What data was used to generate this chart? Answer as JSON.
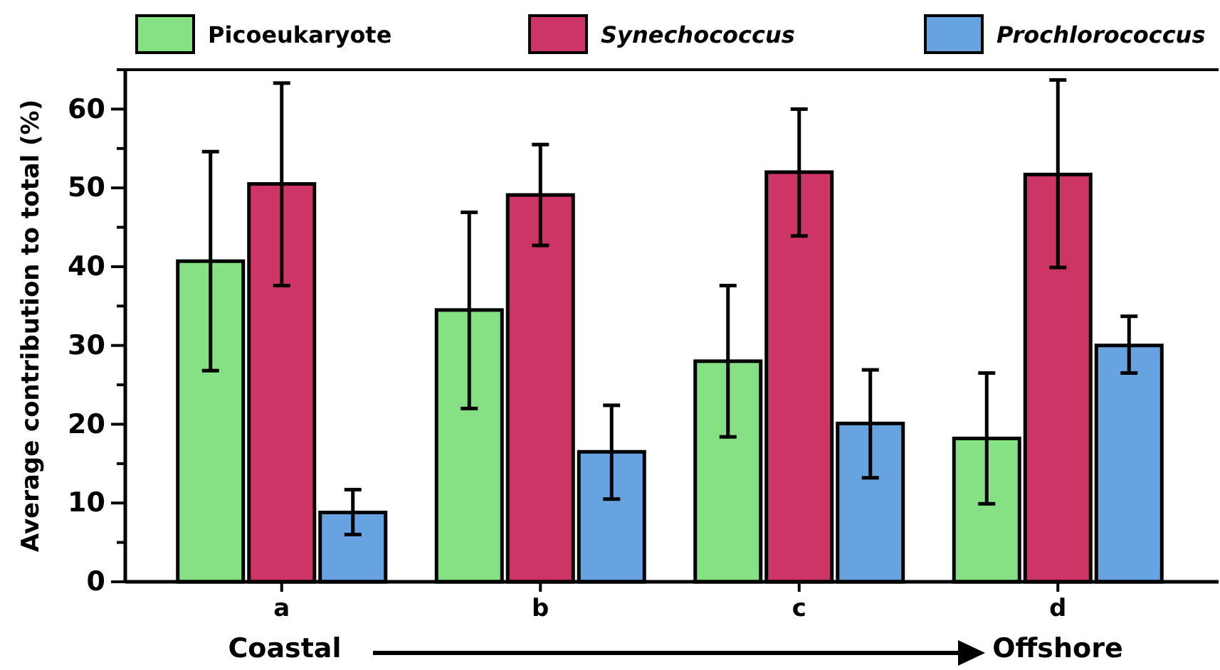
{
  "chart_data": {
    "type": "bar",
    "ylabel": "Average contribution to total (%)",
    "categories": [
      "a",
      "b",
      "c",
      "d"
    ],
    "series": [
      {
        "name": "Picoeukaryote",
        "color": "#86e084",
        "values": [
          40.7,
          34.5,
          28.0,
          18.2
        ],
        "errors": [
          [
            26.8,
            54.6
          ],
          [
            22.0,
            46.9
          ],
          [
            18.4,
            37.6
          ],
          [
            9.9,
            26.5
          ]
        ]
      },
      {
        "name": "Synechococcus",
        "color": "#cc3565",
        "values": [
          50.5,
          49.1,
          52.0,
          51.7
        ],
        "errors": [
          [
            37.6,
            63.3
          ],
          [
            42.7,
            55.5
          ],
          [
            43.9,
            60.0
          ],
          [
            39.9,
            63.7
          ]
        ]
      },
      {
        "name": "Prochlorococcus",
        "color": "#66a3e0",
        "values": [
          8.8,
          16.5,
          20.1,
          30.0
        ],
        "errors": [
          [
            6.0,
            11.7
          ],
          [
            10.5,
            22.4
          ],
          [
            13.2,
            26.9
          ],
          [
            26.5,
            33.7
          ]
        ]
      }
    ],
    "ylim": [
      0,
      65
    ],
    "yticks": [
      0,
      {
        "value": 5,
        "label": null
      },
      10,
      {
        "value": 15,
        "label": null
      },
      20,
      {
        "value": 25,
        "label": null
      },
      30,
      {
        "value": 35,
        "label": null
      },
      40,
      {
        "value": 45,
        "label": null
      },
      50,
      {
        "value": 55,
        "label": null
      },
      60,
      {
        "value": 65,
        "label": null
      }
    ],
    "legend": "top",
    "grid": false,
    "annotations": [
      "Coastal",
      "Offshore"
    ]
  }
}
